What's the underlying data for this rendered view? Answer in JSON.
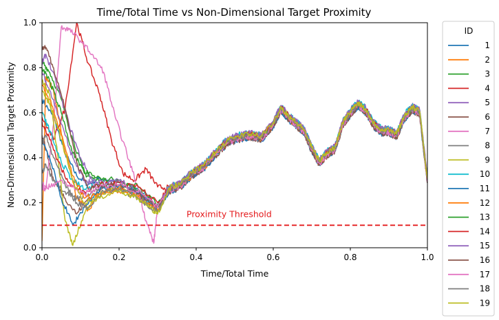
{
  "chart_data": {
    "type": "line",
    "title": "Time/Total Time vs Non-Dimensional Target Proximity",
    "xlabel": "Time/Total Time",
    "ylabel": "Non-Dimensional Target Proximity",
    "xlim": [
      0,
      1
    ],
    "ylim": [
      0,
      1
    ],
    "xticks": [
      "0.0",
      "0.2",
      "0.4",
      "0.6",
      "0.8",
      "1.0"
    ],
    "yticks": [
      "0.0",
      "0.2",
      "0.4",
      "0.6",
      "0.8",
      "1.0"
    ],
    "grid": false,
    "legend": {
      "title": "ID",
      "placement": "outside-right"
    },
    "threshold": {
      "y": 0.1,
      "label": "Proximity Threshold",
      "color": "#e41a1c",
      "style": "dashed"
    },
    "common_tail": {
      "x": [
        0.3,
        0.33,
        0.36,
        0.39,
        0.42,
        0.45,
        0.48,
        0.51,
        0.54,
        0.57,
        0.6,
        0.62,
        0.64,
        0.66,
        0.68,
        0.7,
        0.72,
        0.74,
        0.76,
        0.78,
        0.8,
        0.82,
        0.84,
        0.86,
        0.88,
        0.9,
        0.92,
        0.94,
        0.96,
        0.98,
        1.0
      ],
      "y": [
        0.18,
        0.26,
        0.28,
        0.33,
        0.36,
        0.42,
        0.47,
        0.49,
        0.5,
        0.49,
        0.55,
        0.62,
        0.58,
        0.55,
        0.52,
        0.44,
        0.38,
        0.42,
        0.44,
        0.55,
        0.6,
        0.64,
        0.61,
        0.55,
        0.52,
        0.52,
        0.5,
        0.58,
        0.62,
        0.6,
        0.3
      ]
    },
    "series": [
      {
        "name": "1",
        "color": "#1f77b4",
        "x": [
          0,
          0.03,
          0.06,
          0.09,
          0.12,
          0.15,
          0.2,
          0.25,
          0.3
        ],
        "y": [
          0.66,
          0.58,
          0.42,
          0.32,
          0.28,
          0.31,
          0.29,
          0.26,
          0.19
        ]
      },
      {
        "name": "2",
        "color": "#ff7f0e",
        "x": [
          0,
          0.01,
          0.03,
          0.06,
          0.09,
          0.12,
          0.15,
          0.2,
          0.25,
          0.3
        ],
        "y": [
          0.03,
          0.76,
          0.7,
          0.42,
          0.22,
          0.17,
          0.24,
          0.25,
          0.23,
          0.17
        ]
      },
      {
        "name": "3",
        "color": "#2ca02c",
        "x": [
          0,
          0.02,
          0.05,
          0.08,
          0.11,
          0.14,
          0.2,
          0.25,
          0.3
        ],
        "y": [
          0.83,
          0.78,
          0.66,
          0.48,
          0.33,
          0.3,
          0.29,
          0.26,
          0.18
        ]
      },
      {
        "name": "4",
        "color": "#d62728",
        "x": [
          0,
          0.03,
          0.06,
          0.09,
          0.12,
          0.15,
          0.18,
          0.21,
          0.24,
          0.27,
          0.3
        ],
        "y": [
          0.58,
          0.48,
          0.62,
          1.0,
          0.82,
          0.68,
          0.48,
          0.33,
          0.3,
          0.35,
          0.27
        ]
      },
      {
        "name": "5",
        "color": "#9467bd",
        "x": [
          0,
          0.01,
          0.04,
          0.07,
          0.1,
          0.13,
          0.16,
          0.2,
          0.25,
          0.3
        ],
        "y": [
          0.82,
          0.86,
          0.72,
          0.55,
          0.4,
          0.3,
          0.29,
          0.3,
          0.24,
          0.18
        ]
      },
      {
        "name": "6",
        "color": "#8c564b",
        "x": [
          0,
          0.01,
          0.03,
          0.06,
          0.09,
          0.12,
          0.16,
          0.2,
          0.25,
          0.3
        ],
        "y": [
          0.5,
          0.44,
          0.3,
          0.22,
          0.15,
          0.22,
          0.27,
          0.26,
          0.24,
          0.17
        ]
      },
      {
        "name": "7",
        "color": "#e377c2",
        "x": [
          0,
          0.01,
          0.03,
          0.05,
          0.07,
          0.1,
          0.13,
          0.16,
          0.19,
          0.22,
          0.25,
          0.27,
          0.29,
          0.3
        ],
        "y": [
          0.27,
          0.26,
          0.55,
          0.98,
          0.97,
          0.92,
          0.86,
          0.78,
          0.58,
          0.42,
          0.26,
          0.12,
          0.02,
          0.18
        ]
      },
      {
        "name": "8",
        "color": "#7f7f7f",
        "x": [
          0,
          0.01,
          0.03,
          0.06,
          0.09,
          0.12,
          0.16,
          0.2,
          0.25,
          0.3
        ],
        "y": [
          0.33,
          0.37,
          0.3,
          0.25,
          0.22,
          0.24,
          0.27,
          0.26,
          0.22,
          0.16
        ]
      },
      {
        "name": "9",
        "color": "#bcbd22",
        "x": [
          0,
          0.02,
          0.04,
          0.06,
          0.08,
          0.11,
          0.14,
          0.2,
          0.25,
          0.3
        ],
        "y": [
          0.74,
          0.68,
          0.42,
          0.12,
          0.01,
          0.15,
          0.24,
          0.26,
          0.22,
          0.15
        ]
      },
      {
        "name": "10",
        "color": "#17becf",
        "x": [
          0,
          0.02,
          0.05,
          0.08,
          0.11,
          0.15,
          0.2,
          0.25,
          0.3
        ],
        "y": [
          0.6,
          0.52,
          0.38,
          0.3,
          0.26,
          0.28,
          0.27,
          0.24,
          0.18
        ]
      },
      {
        "name": "11",
        "color": "#1f77b4",
        "x": [
          0,
          0.02,
          0.05,
          0.08,
          0.11,
          0.15,
          0.2,
          0.25,
          0.3
        ],
        "y": [
          0.48,
          0.4,
          0.22,
          0.1,
          0.18,
          0.26,
          0.28,
          0.24,
          0.17
        ]
      },
      {
        "name": "12",
        "color": "#ff7f0e",
        "x": [
          0,
          0.02,
          0.05,
          0.08,
          0.11,
          0.15,
          0.2,
          0.25,
          0.3
        ],
        "y": [
          0.72,
          0.66,
          0.5,
          0.32,
          0.22,
          0.24,
          0.27,
          0.23,
          0.17
        ]
      },
      {
        "name": "13",
        "color": "#2ca02c",
        "x": [
          0,
          0.02,
          0.05,
          0.08,
          0.11,
          0.14,
          0.2,
          0.25,
          0.3
        ],
        "y": [
          0.8,
          0.74,
          0.6,
          0.42,
          0.34,
          0.31,
          0.3,
          0.27,
          0.19
        ]
      },
      {
        "name": "14",
        "color": "#d62728",
        "x": [
          0,
          0.02,
          0.05,
          0.08,
          0.11,
          0.15,
          0.2,
          0.25,
          0.3
        ],
        "y": [
          0.56,
          0.48,
          0.35,
          0.27,
          0.25,
          0.28,
          0.29,
          0.27,
          0.2
        ]
      },
      {
        "name": "15",
        "color": "#9467bd",
        "x": [
          0,
          0.02,
          0.05,
          0.08,
          0.11,
          0.14,
          0.2,
          0.25,
          0.3
        ],
        "y": [
          0.78,
          0.7,
          0.55,
          0.4,
          0.3,
          0.28,
          0.3,
          0.25,
          0.18
        ]
      },
      {
        "name": "16",
        "color": "#8c564b",
        "x": [
          0,
          0.01,
          0.03,
          0.06,
          0.09,
          0.12,
          0.16,
          0.2,
          0.25,
          0.3
        ],
        "y": [
          0.88,
          0.89,
          0.8,
          0.62,
          0.38,
          0.26,
          0.28,
          0.28,
          0.24,
          0.18
        ]
      },
      {
        "name": "17",
        "color": "#e377c2",
        "x": [
          0,
          0.02,
          0.05,
          0.08,
          0.11,
          0.15,
          0.2,
          0.25,
          0.3
        ],
        "y": [
          0.28,
          0.27,
          0.3,
          0.27,
          0.24,
          0.27,
          0.28,
          0.25,
          0.18
        ]
      },
      {
        "name": "18",
        "color": "#7f7f7f",
        "x": [
          0,
          0.01,
          0.03,
          0.06,
          0.09,
          0.12,
          0.16,
          0.2,
          0.25,
          0.3
        ],
        "y": [
          0.46,
          0.5,
          0.4,
          0.28,
          0.2,
          0.18,
          0.25,
          0.26,
          0.22,
          0.16
        ]
      },
      {
        "name": "19",
        "color": "#bcbd22",
        "x": [
          0,
          0.02,
          0.05,
          0.08,
          0.11,
          0.15,
          0.2,
          0.25,
          0.3
        ],
        "y": [
          0.7,
          0.64,
          0.48,
          0.3,
          0.2,
          0.22,
          0.25,
          0.22,
          0.15
        ]
      }
    ]
  }
}
